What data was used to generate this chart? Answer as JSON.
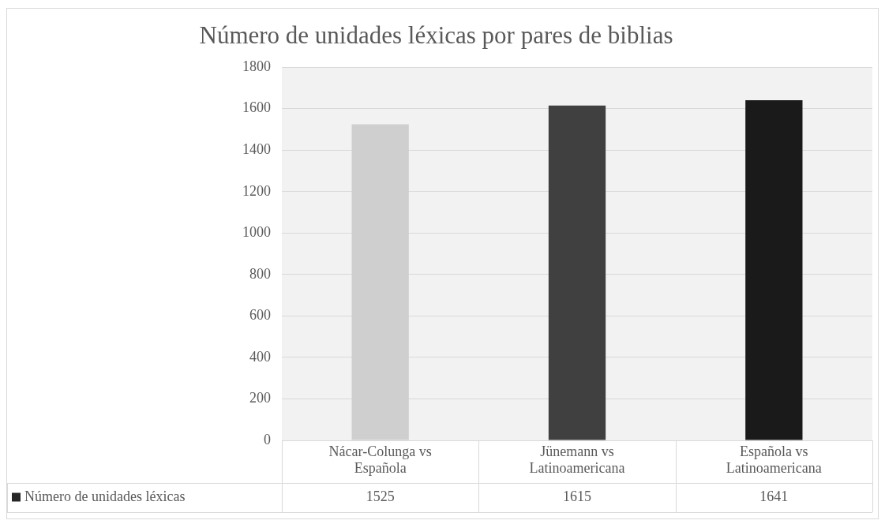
{
  "chart_data": {
    "type": "bar",
    "title": "Número de unidades léxicas por pares de biblias",
    "categories": [
      "Nácar-Colunga vs Española",
      "Jünemann vs Latinoamericana",
      "Española vs Latinoamericana"
    ],
    "series": [
      {
        "name": "Número de unidades léxicas",
        "color": "#262626",
        "colors": [
          "#cfcfcf",
          "#404040",
          "#1a1a1a"
        ],
        "values": [
          1525,
          1615,
          1641
        ]
      }
    ],
    "ylim": [
      0,
      1800
    ],
    "yticks": [
      0,
      200,
      400,
      600,
      800,
      1000,
      1200,
      1400,
      1600,
      1800
    ],
    "grid": "y",
    "data_labels": true
  }
}
